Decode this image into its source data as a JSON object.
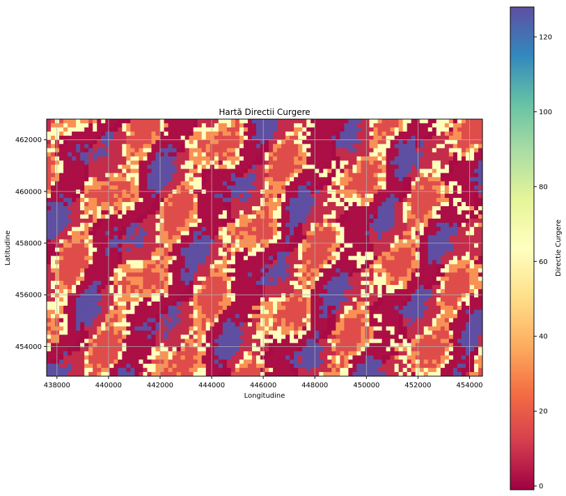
{
  "chart_data": {
    "type": "heatmap",
    "title": "Hartă Directii Curgere",
    "xlabel": "Longitudine",
    "ylabel": "Latitudine",
    "xlim": [
      437600,
      454500
    ],
    "ylim": [
      452850,
      462800
    ],
    "xticks": [
      438000,
      440000,
      442000,
      444000,
      446000,
      448000,
      450000,
      452000,
      454000
    ],
    "xtick_labels": [
      "438000",
      "440000",
      "442000",
      "444000",
      "446000",
      "448000",
      "450000",
      "452000",
      "454000"
    ],
    "yticks": [
      454000,
      456000,
      458000,
      460000,
      462000
    ],
    "ytick_labels": [
      "454000",
      "456000",
      "458000",
      "460000",
      "462000"
    ],
    "grid": true,
    "colormap": "Spectral",
    "colorbar": {
      "label": "Directie Curgere",
      "range": [
        -1,
        128
      ],
      "ticks": [
        0,
        20,
        40,
        60,
        80,
        100,
        120
      ],
      "tick_labels": [
        "0",
        "20",
        "40",
        "60",
        "80",
        "100",
        "120"
      ]
    },
    "values_present": [
      1,
      2,
      4,
      8,
      16,
      32,
      64,
      128
    ],
    "colormap_stops": [
      "#9e0142",
      "#d53e4f",
      "#f46d43",
      "#fdae61",
      "#fee08b",
      "#ffffbf",
      "#e6f598",
      "#abdda4",
      "#66c2a5",
      "#3288bd",
      "#5e4fa2"
    ]
  }
}
